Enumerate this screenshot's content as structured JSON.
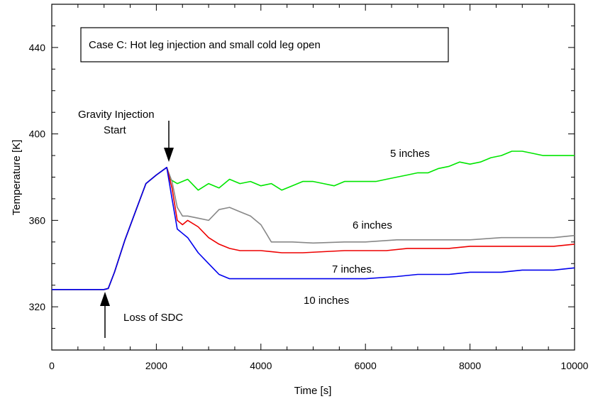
{
  "chart_data": {
    "type": "line",
    "title": "Case C: Hot leg injection and small cold leg open",
    "xlabel": "Time [s]",
    "ylabel": "Temperature [K]",
    "xlim": [
      0,
      10000
    ],
    "ylim": [
      300,
      460
    ],
    "x_ticks": [
      0,
      2000,
      4000,
      6000,
      8000,
      10000
    ],
    "y_ticks": [
      320,
      360,
      400,
      440
    ],
    "x_tick_labels": [
      "0",
      "2000",
      "4000",
      "6000",
      "8000",
      "10000"
    ],
    "y_tick_labels": [
      "320",
      "360",
      "400",
      "440"
    ],
    "grid": false,
    "series": [
      {
        "name": "5 inches",
        "color": "#00e600",
        "points": [
          [
            0,
            328
          ],
          [
            1000,
            328
          ],
          [
            1080,
            328.5
          ],
          [
            1200,
            336
          ],
          [
            1400,
            351
          ],
          [
            1600,
            364
          ],
          [
            1800,
            377
          ],
          [
            2000,
            381
          ],
          [
            2200,
            384.5
          ],
          [
            2260,
            379
          ],
          [
            2400,
            377
          ],
          [
            2600,
            379
          ],
          [
            2800,
            374
          ],
          [
            3000,
            377
          ],
          [
            3200,
            375
          ],
          [
            3400,
            379
          ],
          [
            3600,
            377
          ],
          [
            3800,
            378
          ],
          [
            4000,
            376
          ],
          [
            4200,
            377
          ],
          [
            4400,
            374
          ],
          [
            4600,
            376
          ],
          [
            4800,
            378
          ],
          [
            5000,
            378
          ],
          [
            5200,
            377
          ],
          [
            5400,
            376
          ],
          [
            5600,
            378
          ],
          [
            5800,
            378
          ],
          [
            6000,
            378
          ],
          [
            6200,
            378
          ],
          [
            6400,
            379
          ],
          [
            6600,
            380
          ],
          [
            6800,
            381
          ],
          [
            7000,
            382
          ],
          [
            7200,
            382
          ],
          [
            7400,
            384
          ],
          [
            7600,
            385
          ],
          [
            7800,
            387
          ],
          [
            8000,
            386
          ],
          [
            8200,
            387
          ],
          [
            8400,
            389
          ],
          [
            8600,
            390
          ],
          [
            8800,
            392
          ],
          [
            9000,
            392
          ],
          [
            9200,
            391
          ],
          [
            9400,
            390
          ],
          [
            9600,
            390
          ],
          [
            9800,
            390
          ],
          [
            10000,
            390
          ]
        ]
      },
      {
        "name": "6 inches",
        "color": "#888888",
        "points": [
          [
            0,
            328
          ],
          [
            1000,
            328
          ],
          [
            1080,
            328.5
          ],
          [
            1200,
            336
          ],
          [
            1400,
            351
          ],
          [
            1600,
            364
          ],
          [
            1800,
            377
          ],
          [
            2000,
            381
          ],
          [
            2200,
            384.5
          ],
          [
            2300,
            378
          ],
          [
            2400,
            366
          ],
          [
            2500,
            362
          ],
          [
            2600,
            362
          ],
          [
            2800,
            361
          ],
          [
            3000,
            360
          ],
          [
            3200,
            365
          ],
          [
            3400,
            366
          ],
          [
            3600,
            364
          ],
          [
            3800,
            362
          ],
          [
            4000,
            358
          ],
          [
            4100,
            354
          ],
          [
            4200,
            350
          ],
          [
            4600,
            350
          ],
          [
            5000,
            349.5
          ],
          [
            5600,
            350
          ],
          [
            6000,
            350
          ],
          [
            6600,
            351
          ],
          [
            7000,
            351
          ],
          [
            7600,
            351
          ],
          [
            8000,
            351
          ],
          [
            8600,
            352
          ],
          [
            9000,
            352
          ],
          [
            9600,
            352
          ],
          [
            10000,
            353
          ]
        ]
      },
      {
        "name": "7 inches.",
        "color": "#ee0000",
        "points": [
          [
            0,
            328
          ],
          [
            1000,
            328
          ],
          [
            1080,
            328.5
          ],
          [
            1200,
            336
          ],
          [
            1400,
            351
          ],
          [
            1600,
            364
          ],
          [
            1800,
            377
          ],
          [
            2000,
            381
          ],
          [
            2200,
            384.5
          ],
          [
            2300,
            375
          ],
          [
            2400,
            360
          ],
          [
            2500,
            358
          ],
          [
            2600,
            360
          ],
          [
            2800,
            357
          ],
          [
            3000,
            352
          ],
          [
            3200,
            349
          ],
          [
            3400,
            347
          ],
          [
            3600,
            346
          ],
          [
            4000,
            346
          ],
          [
            4400,
            345
          ],
          [
            4800,
            345
          ],
          [
            5200,
            345.5
          ],
          [
            5600,
            346
          ],
          [
            6000,
            346
          ],
          [
            6400,
            346
          ],
          [
            6800,
            347
          ],
          [
            7200,
            347
          ],
          [
            7600,
            347
          ],
          [
            8000,
            348
          ],
          [
            8400,
            348
          ],
          [
            8800,
            348
          ],
          [
            9200,
            348
          ],
          [
            9600,
            348
          ],
          [
            10000,
            349
          ]
        ]
      },
      {
        "name": "10 inches",
        "color": "#0000ee",
        "points": [
          [
            0,
            328
          ],
          [
            1000,
            328
          ],
          [
            1080,
            328.5
          ],
          [
            1200,
            336
          ],
          [
            1400,
            351
          ],
          [
            1600,
            364
          ],
          [
            1800,
            377
          ],
          [
            2000,
            381
          ],
          [
            2200,
            384.5
          ],
          [
            2300,
            370
          ],
          [
            2400,
            356
          ],
          [
            2600,
            352
          ],
          [
            2800,
            345
          ],
          [
            3000,
            340
          ],
          [
            3200,
            335
          ],
          [
            3400,
            333
          ],
          [
            4000,
            333
          ],
          [
            5000,
            333
          ],
          [
            6000,
            333
          ],
          [
            6600,
            334
          ],
          [
            7000,
            335
          ],
          [
            7600,
            335
          ],
          [
            8000,
            336
          ],
          [
            8600,
            336
          ],
          [
            9000,
            337
          ],
          [
            9600,
            337
          ],
          [
            10000,
            338
          ]
        ]
      }
    ],
    "annotations": {
      "gravity_line1": "Gravity Injection",
      "gravity_line2": "Start",
      "loss": "Loss of SDC",
      "label_5": "5 inches",
      "label_6": "6 inches",
      "label_7": "7 inches.",
      "label_10": "10 inches"
    }
  }
}
